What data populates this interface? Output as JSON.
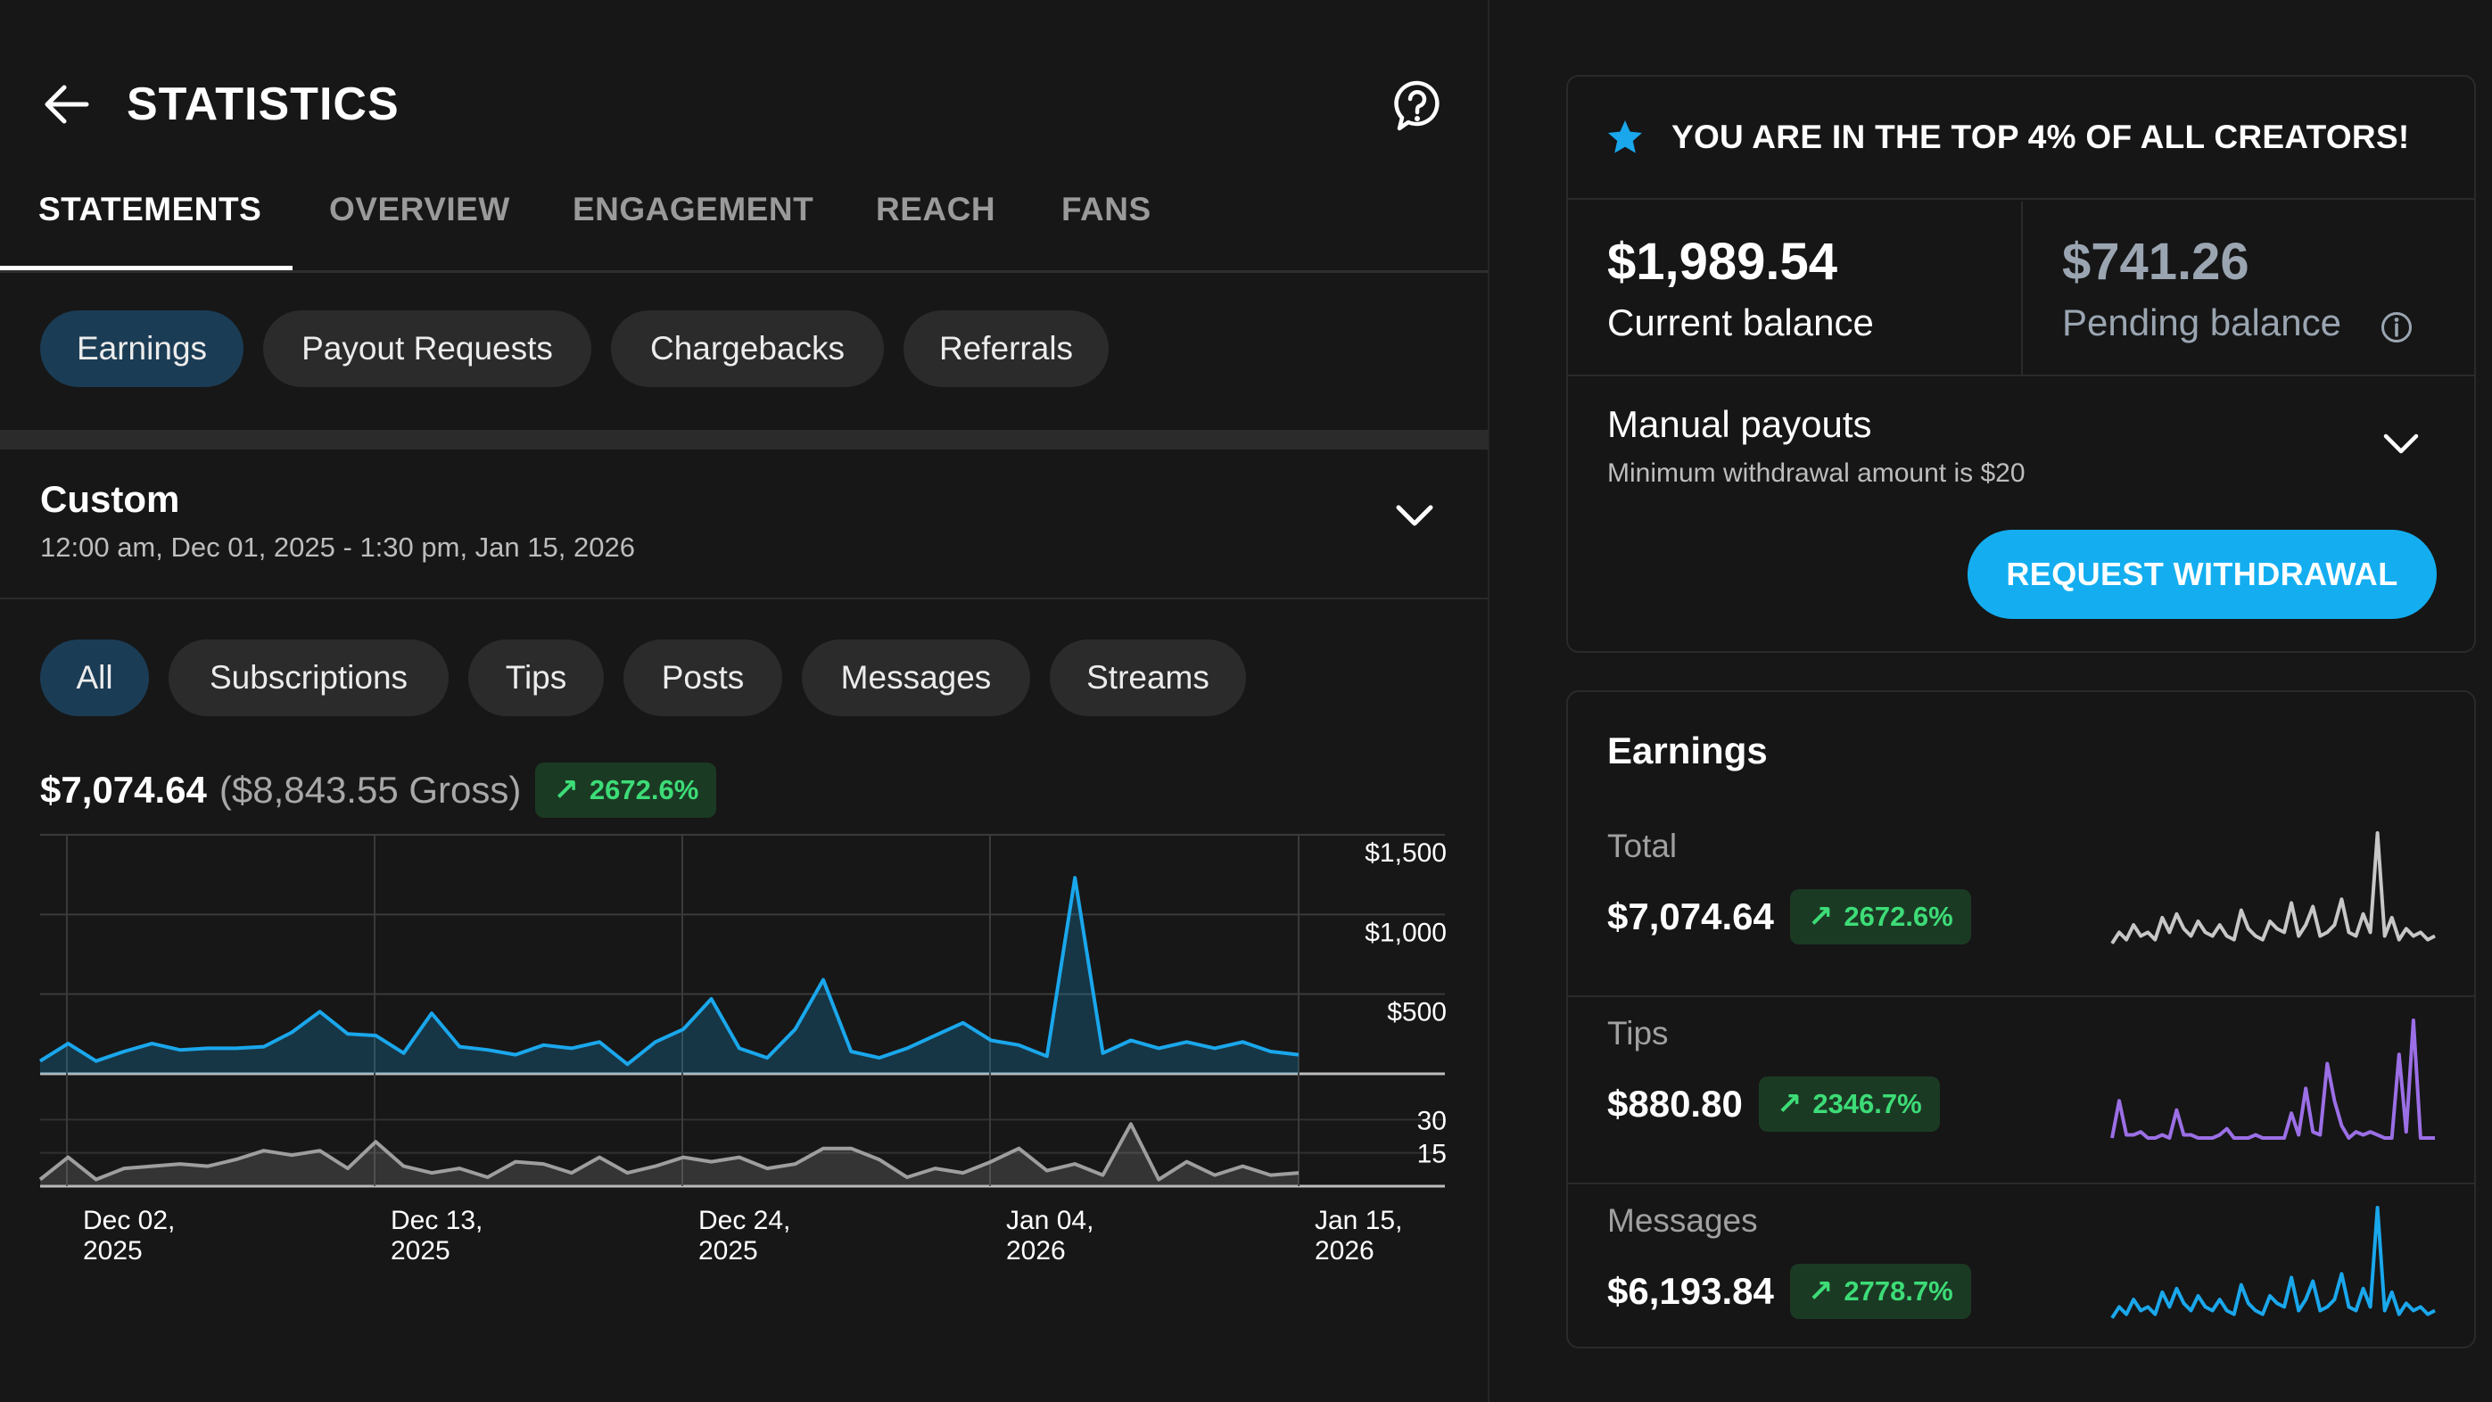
{
  "header": {
    "title": "STATISTICS",
    "back_icon": "arrow-left-icon",
    "help_icon": "question-circle-icon"
  },
  "tabs": [
    {
      "label": "STATEMENTS",
      "active": true
    },
    {
      "label": "OVERVIEW",
      "active": false
    },
    {
      "label": "ENGAGEMENT",
      "active": false
    },
    {
      "label": "REACH",
      "active": false
    },
    {
      "label": "FANS",
      "active": false
    }
  ],
  "statement_types": [
    {
      "label": "Earnings",
      "active": true
    },
    {
      "label": "Payout Requests",
      "active": false
    },
    {
      "label": "Chargebacks",
      "active": false
    },
    {
      "label": "Referrals",
      "active": false
    }
  ],
  "date_range": {
    "title": "Custom",
    "subtitle": "12:00 am, Dec 01, 2025 - 1:30 pm, Jan 15, 2026"
  },
  "filters": [
    {
      "label": "All",
      "active": true
    },
    {
      "label": "Subscriptions",
      "active": false
    },
    {
      "label": "Tips",
      "active": false
    },
    {
      "label": "Posts",
      "active": false
    },
    {
      "label": "Messages",
      "active": false
    },
    {
      "label": "Streams",
      "active": false
    }
  ],
  "summary": {
    "net": "$7,074.64",
    "gross": "($8,843.55 Gross)",
    "change": "2672.6%"
  },
  "chart_data": [
    {
      "type": "area",
      "series": [
        {
          "name": "",
          "x_start": "2025-12-01",
          "values": [
            80,
            190,
            80,
            140,
            190,
            150,
            160,
            160,
            170,
            260,
            390,
            250,
            240,
            130,
            380,
            170,
            150,
            120,
            180,
            160,
            200,
            60,
            200,
            280,
            470,
            160,
            100,
            280,
            590,
            140,
            100,
            160,
            240,
            320,
            210,
            180,
            110,
            1230,
            130,
            210,
            160,
            200,
            160,
            200,
            140,
            120
          ]
        }
      ],
      "ylim": [
        0,
        1500
      ],
      "yticks": [
        "$1,500",
        "$1,000",
        "$500"
      ],
      "xticks": [
        "Dec 02,\n2025",
        "Dec 13,\n2025",
        "Dec 24,\n2025",
        "Jan 04,\n2026",
        "Jan 15,\n2026"
      ],
      "grid": true,
      "color": "#1aa7ec"
    },
    {
      "type": "area",
      "series": [
        {
          "name": "",
          "x_start": "2025-12-01",
          "values": [
            3,
            13,
            3,
            8,
            9,
            10,
            9,
            12,
            16,
            14,
            16,
            8,
            20,
            9,
            6,
            8,
            4,
            11,
            10,
            6,
            13,
            6,
            9,
            13,
            11,
            13,
            8,
            10,
            17,
            17,
            12,
            4,
            8,
            6,
            11,
            17,
            7,
            10,
            5,
            28,
            3,
            11,
            5,
            9,
            5,
            6
          ]
        }
      ],
      "ylim": [
        0,
        45
      ],
      "yticks": [
        "30",
        "15"
      ],
      "grid": true,
      "color": "#9e9e9e"
    },
    {
      "type": "line",
      "series": [
        {
          "name": "Total",
          "values": [
            2,
            5,
            3,
            7,
            4,
            5,
            3,
            9,
            5,
            10,
            6,
            4,
            8,
            5,
            4,
            7,
            4,
            3,
            11,
            6,
            4,
            3,
            8,
            6,
            5,
            13,
            4,
            7,
            12,
            4,
            5,
            7,
            14,
            5,
            4,
            10,
            5,
            32,
            4,
            9,
            3,
            6,
            4,
            5,
            3,
            4
          ]
        }
      ],
      "color": "#c7c7c7"
    },
    {
      "type": "line",
      "series": [
        {
          "name": "Tips",
          "values": [
            0,
            12,
            1,
            1,
            2,
            0,
            0,
            1,
            0,
            9,
            1,
            1,
            0,
            0,
            0,
            1,
            3,
            0,
            0,
            0,
            1,
            0,
            0,
            0,
            0,
            8,
            1,
            16,
            2,
            1,
            24,
            12,
            4,
            0,
            2,
            1,
            2,
            1,
            0,
            0,
            27,
            2,
            38,
            0,
            0,
            0
          ]
        }
      ],
      "color": "#9b6fe6"
    },
    {
      "type": "line",
      "series": [
        {
          "name": "Messages",
          "values": [
            2,
            5,
            3,
            7,
            4,
            5,
            3,
            9,
            5,
            10,
            6,
            4,
            8,
            5,
            4,
            7,
            4,
            3,
            11,
            6,
            4,
            3,
            8,
            6,
            5,
            13,
            4,
            7,
            12,
            4,
            5,
            7,
            14,
            5,
            4,
            10,
            5,
            32,
            4,
            9,
            3,
            6,
            4,
            5,
            3,
            4
          ]
        }
      ],
      "color": "#1aa7ec"
    }
  ],
  "top_banner": {
    "text": "YOU ARE IN THE TOP 4% OF ALL CREATORS!",
    "icon": "star-icon"
  },
  "balances": {
    "current_amount": "$1,989.54",
    "current_label": "Current balance",
    "pending_amount": "$741.26",
    "pending_label": "Pending balance"
  },
  "payouts": {
    "title": "Manual payouts",
    "subtitle": "Minimum withdrawal amount is $20",
    "button": "REQUEST WITHDRAWAL"
  },
  "earnings": {
    "title": "Earnings",
    "rows": [
      {
        "label": "Total",
        "amount": "$7,074.64",
        "change": "2672.6%"
      },
      {
        "label": "Tips",
        "amount": "$880.80",
        "change": "2346.7%"
      },
      {
        "label": "Messages",
        "amount": "$6,193.84",
        "change": "2778.7%"
      }
    ]
  },
  "colors": {
    "accent": "#14aef0",
    "positive": "#3ddc77",
    "tips": "#9b6fe6"
  }
}
